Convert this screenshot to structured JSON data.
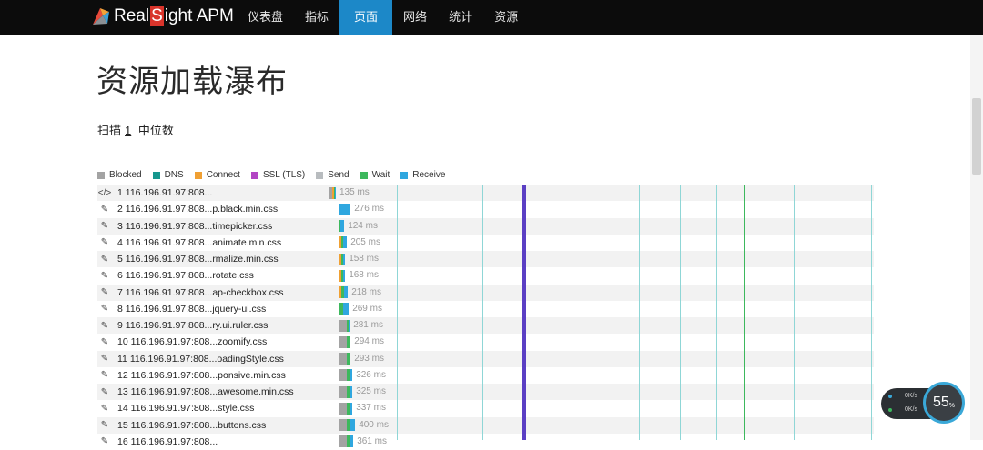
{
  "brand": {
    "name_pre": "Real",
    "name_s": "S",
    "name_post": "ight APM"
  },
  "nav": [
    {
      "label": "仪表盘"
    },
    {
      "label": "指标"
    },
    {
      "label": "页面"
    },
    {
      "label": "网络"
    },
    {
      "label": "统计"
    },
    {
      "label": "资源"
    }
  ],
  "nav_active": "页面",
  "page": {
    "title": "资源加载瀑布",
    "scan_prefix": "扫描",
    "scan_number": "1",
    "scan_suffix": "中位数"
  },
  "legend": [
    {
      "label": "Blocked",
      "color": "#a3a3a3"
    },
    {
      "label": "DNS",
      "color": "#16978e"
    },
    {
      "label": "Connect",
      "color": "#f0a033"
    },
    {
      "label": "SSL (TLS)",
      "color": "#b345c4"
    },
    {
      "label": "Send",
      "color": "#b8bcbf"
    },
    {
      "label": "Wait",
      "color": "#3db85d"
    },
    {
      "label": "Receive",
      "color": "#2fa7df"
    }
  ],
  "rows": [
    {
      "label": "1 116.196.91.97:808...",
      "icon": "code-icon",
      "duration": "135 ms",
      "start_ms": 0,
      "timing": {
        "blocked": 3,
        "dns": 0,
        "connect": 2,
        "ssl": 0,
        "send": 0,
        "wait": 1,
        "receive": 1
      }
    },
    {
      "label": "2 116.196.91.97:808...p.black.min.css",
      "icon": "brush-icon",
      "duration": "276 ms",
      "start_ms": 14,
      "timing": {
        "blocked": 0,
        "dns": 0,
        "connect": 0,
        "ssl": 0,
        "send": 0,
        "wait": 0,
        "receive": 12
      }
    },
    {
      "label": "3 116.196.91.97:808...timepicker.css",
      "icon": "brush-icon",
      "duration": "124 ms",
      "start_ms": 14,
      "timing": {
        "blocked": 0,
        "dns": 0,
        "connect": 0,
        "ssl": 0,
        "send": 0,
        "wait": 1,
        "receive": 4
      }
    },
    {
      "label": "4 116.196.91.97:808...animate.min.css",
      "icon": "brush-icon",
      "duration": "205 ms",
      "start_ms": 14,
      "timing": {
        "blocked": 0,
        "dns": 0,
        "connect": 2,
        "ssl": 0,
        "send": 0,
        "wait": 2,
        "receive": 4
      }
    },
    {
      "label": "5 116.196.91.97:808...rmalize.min.css",
      "icon": "brush-icon",
      "duration": "158 ms",
      "start_ms": 14,
      "timing": {
        "blocked": 0,
        "dns": 0,
        "connect": 2,
        "ssl": 0,
        "send": 0,
        "wait": 2,
        "receive": 2
      }
    },
    {
      "label": "6 116.196.91.97:808...rotate.css",
      "icon": "brush-icon",
      "duration": "168 ms",
      "start_ms": 14,
      "timing": {
        "blocked": 0,
        "dns": 0,
        "connect": 2,
        "ssl": 0,
        "send": 0,
        "wait": 2,
        "receive": 2
      }
    },
    {
      "label": "7 116.196.91.97:808...ap-checkbox.css",
      "icon": "brush-icon",
      "duration": "218 ms",
      "start_ms": 14,
      "timing": {
        "blocked": 0,
        "dns": 0,
        "connect": 2,
        "ssl": 0,
        "send": 0,
        "wait": 3,
        "receive": 4
      }
    },
    {
      "label": "8 116.196.91.97:808...jquery-ui.css",
      "icon": "brush-icon",
      "duration": "269 ms",
      "start_ms": 14,
      "timing": {
        "blocked": 0,
        "dns": 0,
        "connect": 0,
        "ssl": 0,
        "send": 0,
        "wait": 4,
        "receive": 6
      }
    },
    {
      "label": "9 116.196.91.97:808...ry.ui.ruler.css",
      "icon": "brush-icon",
      "duration": "281 ms",
      "start_ms": 14,
      "timing": {
        "blocked": 8,
        "dns": 0,
        "connect": 0,
        "ssl": 0,
        "send": 0,
        "wait": 2,
        "receive": 1
      }
    },
    {
      "label": "10 116.196.91.97:808...zoomify.css",
      "icon": "brush-icon",
      "duration": "294 ms",
      "start_ms": 14,
      "timing": {
        "blocked": 8,
        "dns": 0,
        "connect": 0,
        "ssl": 0,
        "send": 0,
        "wait": 3,
        "receive": 1
      }
    },
    {
      "label": "11 116.196.91.97:808...oadingStyle.css",
      "icon": "brush-icon",
      "duration": "293 ms",
      "start_ms": 14,
      "timing": {
        "blocked": 8,
        "dns": 0,
        "connect": 0,
        "ssl": 0,
        "send": 0,
        "wait": 3,
        "receive": 1
      }
    },
    {
      "label": "12 116.196.91.97:808...ponsive.min.css",
      "icon": "brush-icon",
      "duration": "326 ms",
      "start_ms": 14,
      "timing": {
        "blocked": 8,
        "dns": 0,
        "connect": 0,
        "ssl": 0,
        "send": 0,
        "wait": 4,
        "receive": 2
      }
    },
    {
      "label": "13 116.196.91.97:808...awesome.min.css",
      "icon": "brush-icon",
      "duration": "325 ms",
      "start_ms": 14,
      "timing": {
        "blocked": 8,
        "dns": 0,
        "connect": 0,
        "ssl": 0,
        "send": 0,
        "wait": 4,
        "receive": 2
      }
    },
    {
      "label": "14 116.196.91.97:808...style.css",
      "icon": "brush-icon",
      "duration": "337 ms",
      "start_ms": 14,
      "timing": {
        "blocked": 8,
        "dns": 0,
        "connect": 0,
        "ssl": 0,
        "send": 0,
        "wait": 4,
        "receive": 2
      }
    },
    {
      "label": "15 116.196.91.97:808...buttons.css",
      "icon": "brush-icon",
      "duration": "400 ms",
      "start_ms": 14,
      "timing": {
        "blocked": 8,
        "dns": 0,
        "connect": 0,
        "ssl": 0,
        "send": 0,
        "wait": 3,
        "receive": 6
      }
    },
    {
      "label": "16 116.196.91.97:808...",
      "icon": "brush-icon",
      "duration": "361 ms",
      "start_ms": 14,
      "timing": {
        "blocked": 8,
        "dns": 0,
        "connect": 0,
        "ssl": 0,
        "send": 0,
        "wait": 3,
        "receive": 4
      }
    }
  ],
  "markers": [
    {
      "ms": 74,
      "color": "#8fd6d6"
    },
    {
      "ms": 168,
      "color": "#8fd6d6"
    },
    {
      "ms": 212,
      "color": "#5b3fc4",
      "bold": true
    },
    {
      "ms": 255,
      "color": "#8fd6d6"
    },
    {
      "ms": 340,
      "color": "#8fd6d6"
    },
    {
      "ms": 385,
      "color": "#8fd6d6"
    },
    {
      "ms": 425,
      "color": "#8fd6d6"
    },
    {
      "ms": 455,
      "color": "#3db85d"
    },
    {
      "ms": 510,
      "color": "#8fd6d6"
    },
    {
      "ms": 595,
      "color": "#8fd6d6"
    }
  ],
  "speed_widget": {
    "upload": "0K/s",
    "download": "0K/s",
    "percent": "55",
    "percent_unit": "%"
  }
}
